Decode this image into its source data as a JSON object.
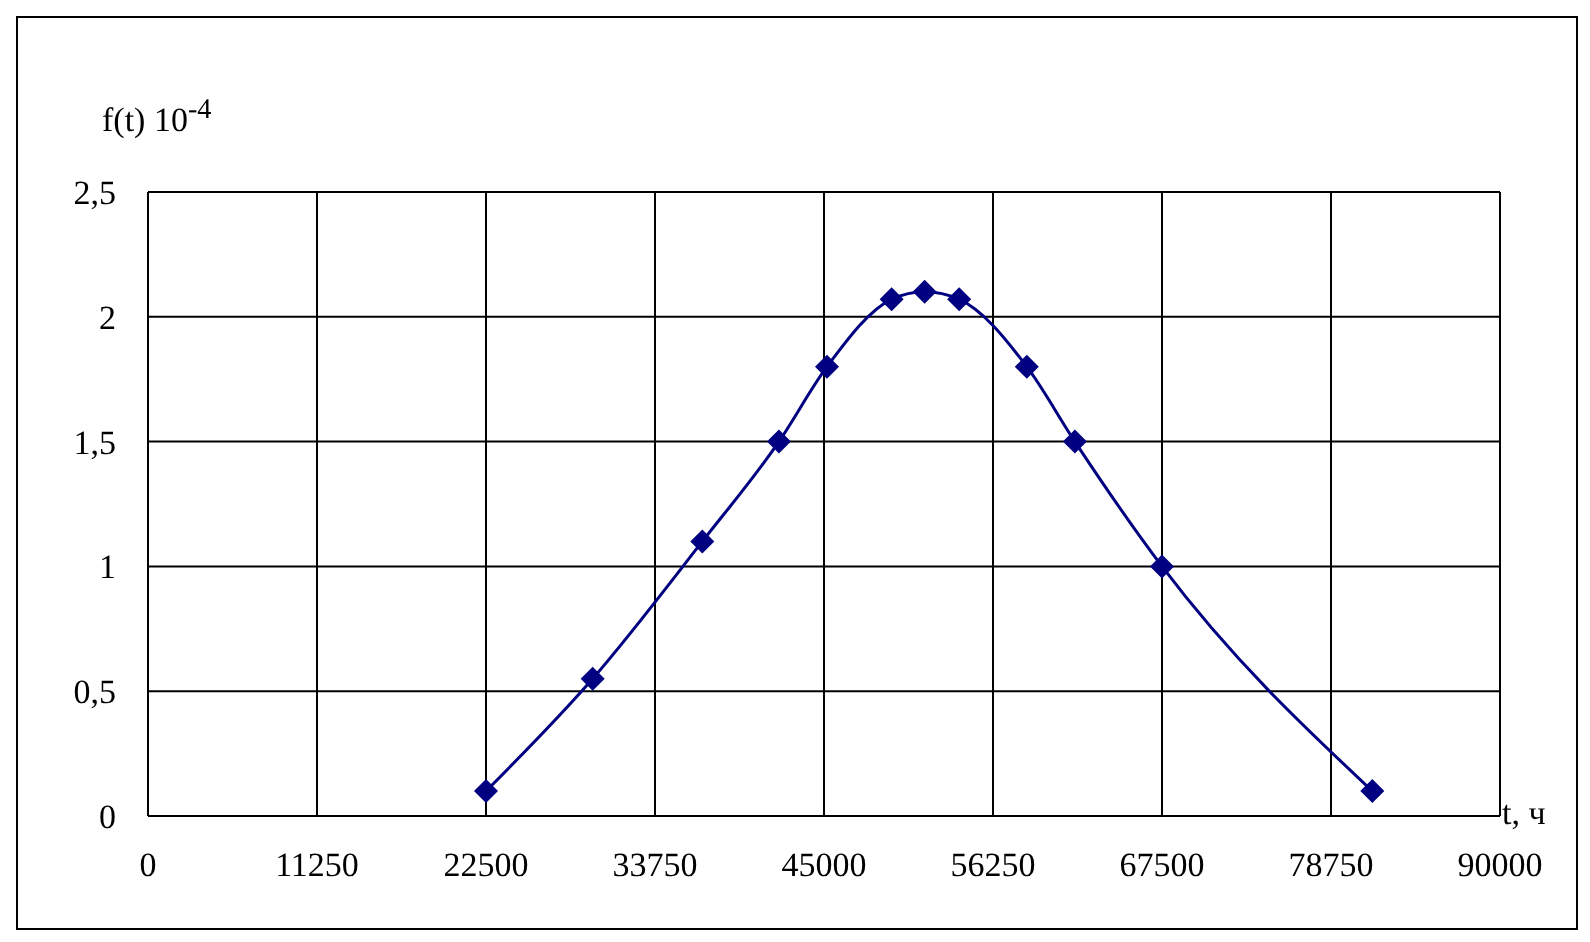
{
  "chart_data": {
    "type": "line",
    "xlabel": "t, ч",
    "ylabel": "f(t) 10$^{-4}$",
    "x": [
      22500,
      29600,
      36900,
      42000,
      45200,
      49500,
      51700,
      54000,
      58500,
      61700,
      67500,
      81500
    ],
    "series": [
      {
        "color": "#000080",
        "values": [
          0.1,
          0.55,
          1.1,
          1.5,
          1.8,
          2.07,
          2.1,
          2.07,
          1.8,
          1.5,
          1.0,
          0.1
        ]
      }
    ],
    "xlim": [
      0,
      90000
    ],
    "xticks": [
      0,
      11250,
      22500,
      33750,
      45000,
      56250,
      67500,
      78750,
      90000
    ],
    "ylim": [
      0,
      2.5
    ],
    "yticks": [
      0,
      {
        "value": 0.5,
        "label": "0,5"
      },
      1,
      {
        "value": 1.5,
        "label": "1,5"
      },
      2,
      {
        "value": 2.5,
        "label": "2,5"
      }
    ],
    "grid": true,
    "marker": "diamond",
    "line_style": "solid",
    "legend": false
  }
}
